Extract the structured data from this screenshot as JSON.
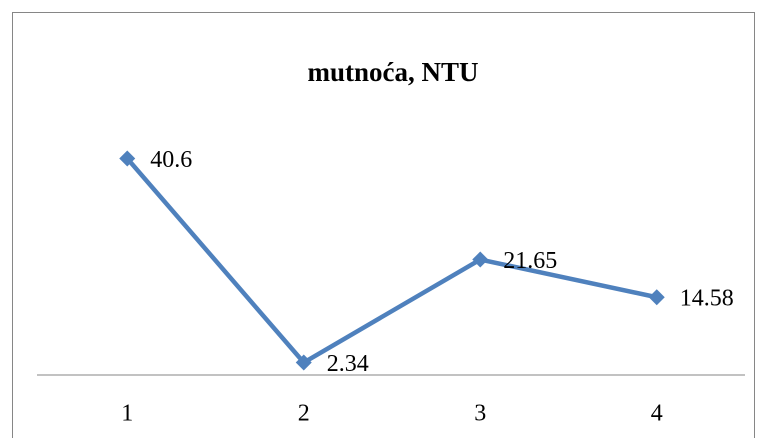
{
  "chart_data": {
    "type": "line",
    "title": "mutnoća, NTU",
    "categories": [
      "1",
      "2",
      "3",
      "4"
    ],
    "series": [
      {
        "name": "mutnoća, NTU",
        "color": "#4f81bd",
        "values": [
          40.6,
          2.34,
          21.65,
          14.58
        ]
      }
    ],
    "ylim": [
      0,
      45
    ]
  }
}
